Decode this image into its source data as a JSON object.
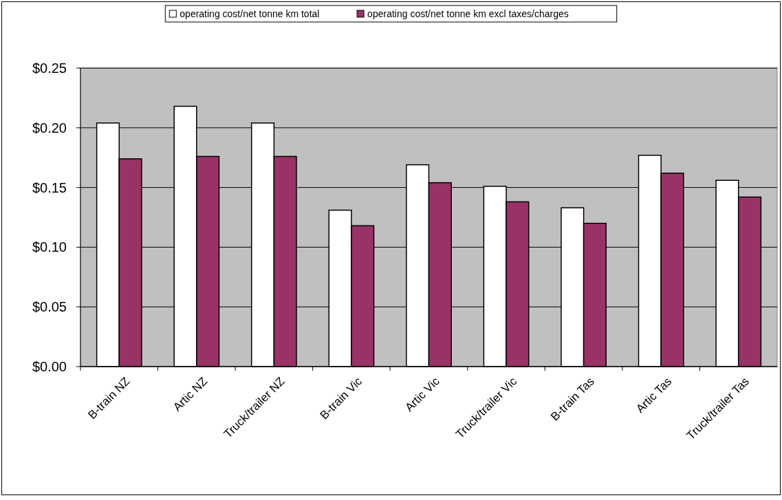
{
  "chart_data": {
    "type": "bar",
    "categories": [
      "B-train NZ",
      "Artic NZ",
      "Truck/trailer NZ",
      "B-train Vic",
      "Artic Vic",
      "Truck/trailer Vic",
      "B-train Tas",
      "Artic Tas",
      "Truck/trailer Tas"
    ],
    "series": [
      {
        "name": "operating cost/net tonne km total",
        "color": "#ffffff",
        "values": [
          0.204,
          0.218,
          0.204,
          0.131,
          0.169,
          0.151,
          0.133,
          0.177,
          0.156
        ]
      },
      {
        "name": "operating cost/net tonne km excl taxes/charges",
        "color": "#993366",
        "values": [
          0.174,
          0.176,
          0.176,
          0.118,
          0.154,
          0.138,
          0.12,
          0.162,
          0.142
        ]
      }
    ],
    "ylim": [
      0,
      0.25
    ],
    "yticks": [
      {
        "value": 0,
        "label": "$0.00"
      },
      {
        "value": 0.05,
        "label": "$0.05"
      },
      {
        "value": 0.1,
        "label": "$0.10"
      },
      {
        "value": 0.15,
        "label": "$0.15"
      },
      {
        "value": 0.2,
        "label": "$0.20"
      },
      {
        "value": 0.25,
        "label": "$0.25"
      }
    ],
    "grid": "y",
    "legend": "top"
  }
}
